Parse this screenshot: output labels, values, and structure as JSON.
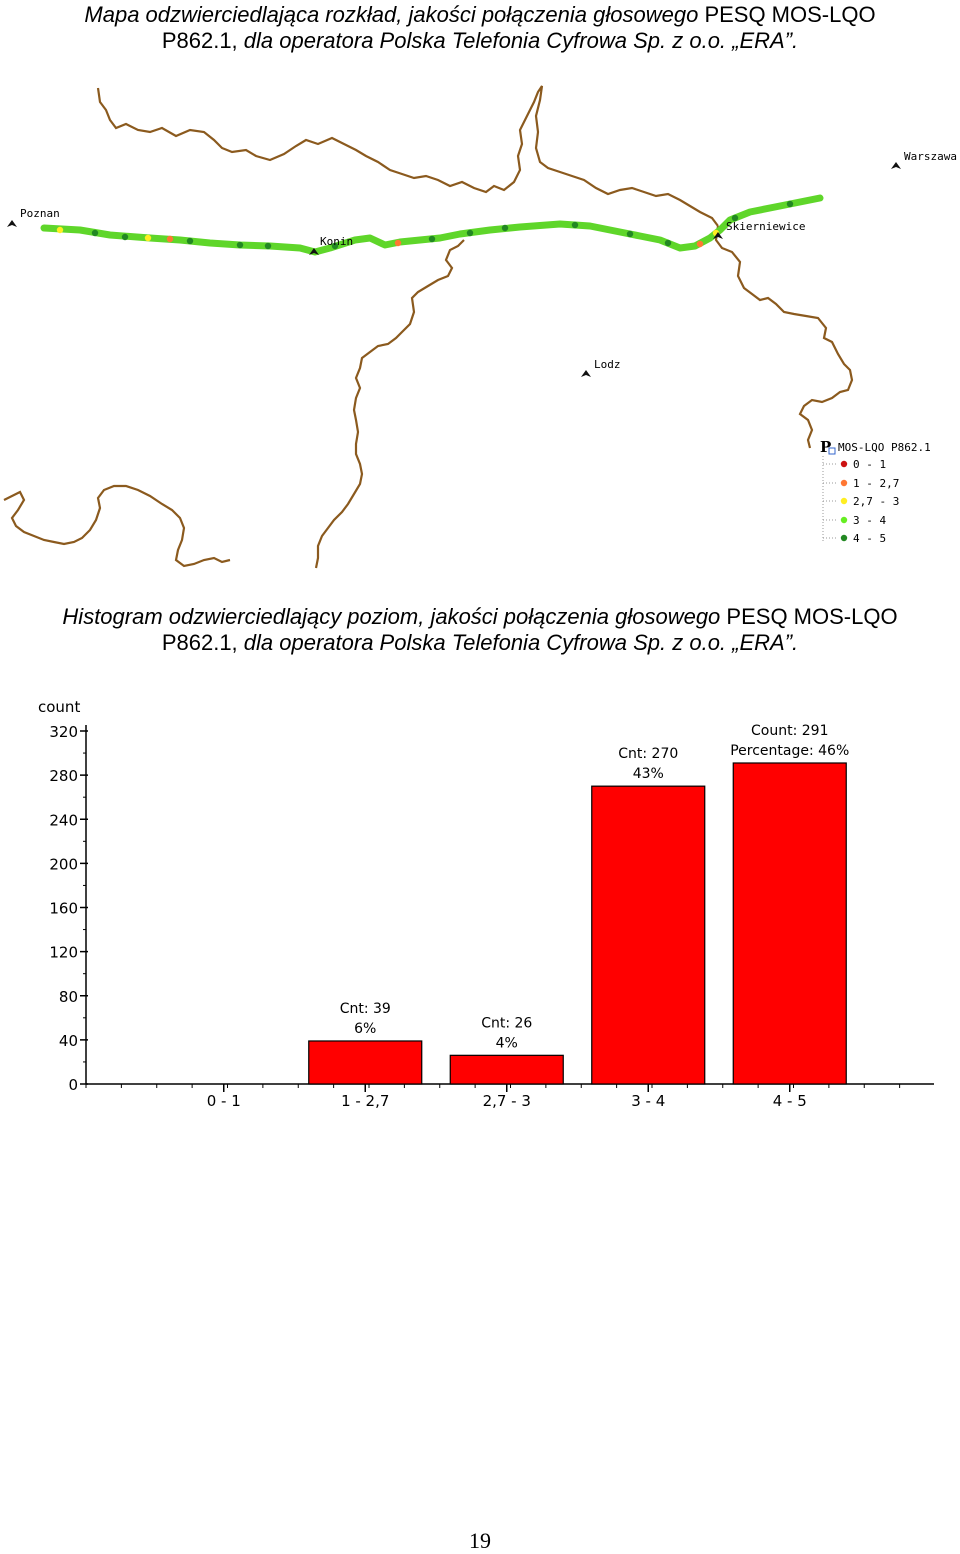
{
  "map_caption": {
    "line1_italic": "Mapa odzwierciedlająca rozkład, jakości połączenia głosowego",
    "line1_plain": "PESQ MOS-LQO",
    "line2_plain": "P862.1,",
    "line2_italic": "dla operatora Polska Telefonia Cyfrowa Sp. z o.o. „ERA”."
  },
  "map": {
    "cities": [
      "Poznan",
      "Konin",
      "Skierniewice",
      "Warszawa",
      "Lodz"
    ],
    "legend_title": "MOS-LQO P862.1",
    "legend_items": [
      {
        "label": "0 - 1",
        "color": "#cc1111"
      },
      {
        "label": "1 - 2,7",
        "color": "#ff7733"
      },
      {
        "label": "2,7 - 3",
        "color": "#ffee22"
      },
      {
        "label": "3 - 4",
        "color": "#66ee22"
      },
      {
        "label": "4 - 5",
        "color": "#228822"
      }
    ],
    "border_color": "#8b5a1e"
  },
  "histogram_caption": {
    "line1_italic": "Histogram odzwierciedlający poziom, jakości połączenia głosowego",
    "line1_plain": "PESQ MOS-LQO",
    "line2_plain": "P862.1,",
    "line2_italic": "dla operatora Polska Telefonia Cyfrowa Sp. z o.o. „ERA”."
  },
  "chart_data": {
    "type": "bar",
    "ylabel": "count",
    "categories": [
      "0 - 1",
      "1 - 2,7",
      "2,7 - 3",
      "3 - 4",
      "4 - 5"
    ],
    "values": [
      0,
      39,
      26,
      270,
      291
    ],
    "annotations": [
      [],
      [
        "Cnt: 39",
        "6%"
      ],
      [
        "Cnt: 26",
        "4%"
      ],
      [
        "Cnt: 270",
        "43%"
      ],
      [
        "Count: 291",
        "Percentage: 46%"
      ]
    ],
    "ylim": [
      0,
      320
    ],
    "yticks": [
      0,
      40,
      80,
      120,
      160,
      200,
      240,
      280,
      320
    ],
    "bar_color": "#ff0000"
  },
  "page_number": "19"
}
